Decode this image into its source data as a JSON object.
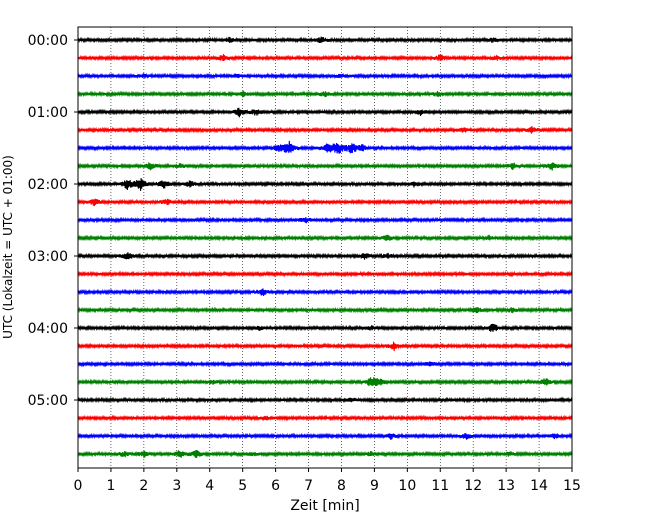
{
  "chart_data": {
    "type": "line",
    "title": "",
    "xlabel": "Zeit  [min]",
    "ylabel": "UTC (Lokalzeit = UTC + 01:00)",
    "xlim": [
      0,
      15
    ],
    "x_ticks": [
      0,
      1,
      2,
      3,
      4,
      5,
      6,
      7,
      8,
      9,
      10,
      11,
      12,
      13,
      14,
      15
    ],
    "x_grid": "dotted vertical lines at each minute",
    "row_minutes": 15,
    "y_ticks": [
      {
        "label": "00:00",
        "row": 0
      },
      {
        "label": "01:00",
        "row": 4
      },
      {
        "label": "02:00",
        "row": 8
      },
      {
        "label": "03:00",
        "row": 12
      },
      {
        "label": "04:00",
        "row": 16
      },
      {
        "label": "05:00",
        "row": 20
      }
    ],
    "colors": [
      "#000000",
      "#ff0000",
      "#0000ff",
      "#008000"
    ],
    "series": [
      {
        "color": "#000000",
        "events": [
          [
            4.6,
            0.6
          ],
          [
            7.4,
            0.7
          ],
          [
            12.6,
            0.5
          ]
        ]
      },
      {
        "color": "#ff0000",
        "events": [
          [
            4.4,
            0.7
          ],
          [
            11.0,
            0.8
          ],
          [
            12.7,
            0.5
          ]
        ]
      },
      {
        "color": "#0000ff",
        "events": [
          [
            2.0,
            0.4
          ],
          [
            4.8,
            0.4
          ],
          [
            8.0,
            0.4
          ]
        ]
      },
      {
        "color": "#008000",
        "events": [
          [
            5.0,
            0.6
          ],
          [
            7.5,
            0.6
          ],
          [
            10.9,
            0.5
          ]
        ]
      },
      {
        "color": "#000000",
        "events": [
          [
            4.9,
            0.9
          ],
          [
            5.4,
            0.7
          ],
          [
            10.4,
            0.6
          ]
        ]
      },
      {
        "color": "#ff0000",
        "events": [
          [
            11.7,
            0.5
          ],
          [
            13.8,
            0.8
          ]
        ]
      },
      {
        "color": "#0000ff",
        "events": [
          [
            6.1,
            0.8
          ],
          [
            6.4,
            1.6
          ],
          [
            7.6,
            1.2
          ],
          [
            7.9,
            1.4
          ],
          [
            8.3,
            1.2
          ],
          [
            8.6,
            0.9
          ]
        ]
      },
      {
        "color": "#008000",
        "events": [
          [
            2.2,
            0.8
          ],
          [
            3.1,
            0.5
          ],
          [
            13.2,
            0.7
          ],
          [
            14.4,
            0.9
          ]
        ]
      },
      {
        "color": "#000000",
        "events": [
          [
            1.5,
            1.2
          ],
          [
            1.9,
            1.5
          ],
          [
            2.6,
            1.0
          ],
          [
            3.4,
            0.7
          ],
          [
            10.2,
            0.5
          ]
        ]
      },
      {
        "color": "#ff0000",
        "events": [
          [
            0.5,
            0.8
          ],
          [
            2.7,
            0.6
          ]
        ]
      },
      {
        "color": "#0000ff",
        "events": [
          [
            6.9,
            0.7
          ]
        ]
      },
      {
        "color": "#008000",
        "events": [
          [
            9.4,
            0.6
          ],
          [
            12.5,
            0.5
          ]
        ]
      },
      {
        "color": "#000000",
        "events": [
          [
            1.5,
            0.9
          ],
          [
            8.7,
            0.7
          ],
          [
            9.4,
            0.5
          ]
        ]
      },
      {
        "color": "#ff0000",
        "events": []
      },
      {
        "color": "#0000ff",
        "events": [
          [
            5.6,
            0.8
          ]
        ]
      },
      {
        "color": "#008000",
        "events": [
          [
            12.1,
            0.6
          ],
          [
            13.2,
            0.6
          ]
        ]
      },
      {
        "color": "#000000",
        "events": [
          [
            5.5,
            0.4
          ],
          [
            8.9,
            0.4
          ],
          [
            12.6,
            1.0
          ]
        ]
      },
      {
        "color": "#ff0000",
        "events": [
          [
            9.6,
            0.9
          ]
        ]
      },
      {
        "color": "#0000ff",
        "events": [
          [
            10.7,
            0.5
          ]
        ]
      },
      {
        "color": "#008000",
        "events": [
          [
            4.1,
            0.5
          ],
          [
            8.9,
            1.0
          ],
          [
            9.1,
            1.1
          ],
          [
            14.2,
            0.8
          ]
        ]
      },
      {
        "color": "#000000",
        "events": [
          [
            8.3,
            0.4
          ]
        ]
      },
      {
        "color": "#ff0000",
        "events": [
          [
            5.7,
            0.4
          ]
        ]
      },
      {
        "color": "#0000ff",
        "events": [
          [
            9.5,
            0.6
          ],
          [
            11.8,
            0.7
          ],
          [
            14.5,
            0.6
          ]
        ]
      },
      {
        "color": "#008000",
        "events": [
          [
            1.4,
            0.6
          ],
          [
            2.0,
            0.6
          ],
          [
            3.1,
            0.9
          ],
          [
            3.6,
            0.8
          ],
          [
            5.3,
            0.5
          ],
          [
            8.9,
            0.5
          ],
          [
            13.1,
            0.5
          ]
        ]
      }
    ]
  }
}
